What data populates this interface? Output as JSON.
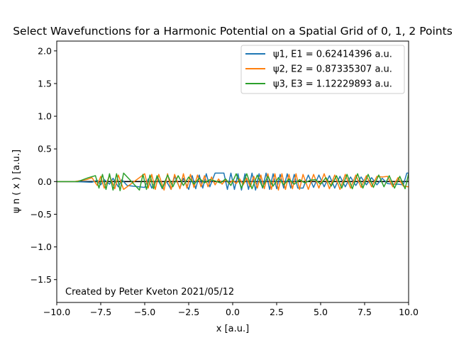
{
  "chart_data": {
    "type": "line",
    "title": "Select Wavefunctions for a Harmonic Potential on a Spatial Grid of 0, 1, 2 Points",
    "xlabel": "x [a.u.]",
    "ylabel": "ψ n ( x ) [a.u.]",
    "xlim": [
      -10,
      10
    ],
    "ylim": [
      -1.85,
      2.15
    ],
    "x_ticks": [
      -10.0,
      -7.5,
      -5.0,
      -2.5,
      0.0,
      2.5,
      5.0,
      7.5,
      10.0
    ],
    "x_tick_labels": [
      "−10.0",
      "−7.5",
      "−5.0",
      "−2.5",
      "0.0",
      "2.5",
      "5.0",
      "7.5",
      "10.0"
    ],
    "y_ticks": [
      -1.5,
      -1.0,
      -0.5,
      0.0,
      0.5,
      1.0,
      1.5,
      2.0
    ],
    "y_tick_labels": [
      "−1.5",
      "−1.0",
      "−0.5",
      "0.0",
      "0.5",
      "1.0",
      "1.5",
      "2.0"
    ],
    "grid": false,
    "legend_position": "top-right",
    "annotation": "Created by Peter Kveton 2021/05/12",
    "zero_line": {
      "y": 0,
      "color": "#000000"
    },
    "series": [
      {
        "name": "ψ1, E1 = 0.62414396 a.u.",
        "color": "#1f77b4",
        "x": [
          -10,
          -9,
          -8,
          -7.7,
          -7.5,
          -7.3,
          -7.0,
          -6.8,
          -6.5,
          -6.3,
          -6.0,
          -5.0,
          -4.8,
          -4.6,
          -4.3,
          -4.0,
          -3.8,
          -3.5,
          -3.3,
          -3.0,
          -2.8,
          -2.5,
          -2.3,
          -2.1,
          -1.9,
          -1.7,
          -1.5,
          -1.3,
          -1.0,
          -0.5,
          -0.3,
          -0.1,
          0.1,
          0.3,
          0.5,
          0.7,
          0.9,
          1.1,
          1.3,
          1.5,
          1.7,
          1.9,
          2.1,
          2.3,
          2.5,
          2.7,
          2.9,
          3.1,
          3.3,
          3.5,
          3.7,
          4.0,
          4.3,
          4.6,
          4.9,
          5.2,
          5.5,
          5.8,
          6.1,
          6.4,
          6.7,
          7.0,
          7.3,
          7.6,
          7.9,
          8.2,
          8.5,
          8.8,
          9.1,
          9.4,
          9.7,
          9.9,
          10
        ],
        "values": [
          0,
          0,
          -0.01,
          0.02,
          -0.05,
          0.03,
          -0.04,
          0.05,
          -0.08,
          0.03,
          -0.06,
          -0.09,
          0.04,
          -0.1,
          0.06,
          -0.11,
          0.02,
          -0.12,
          0.08,
          -0.1,
          0.05,
          -0.12,
          0.09,
          -0.11,
          0.1,
          -0.1,
          0.12,
          -0.08,
          0.13,
          0.13,
          -0.12,
          0.13,
          -0.12,
          0.12,
          -0.13,
          0.12,
          -0.12,
          0.13,
          -0.13,
          0.12,
          -0.1,
          0.13,
          -0.12,
          0.12,
          -0.11,
          0.11,
          -0.1,
          0.12,
          -0.1,
          0.11,
          -0.1,
          -0.1,
          0.1,
          -0.09,
          0.1,
          -0.08,
          0.09,
          -0.1,
          0.08,
          -0.08,
          0.07,
          -0.06,
          0.07,
          -0.05,
          0.06,
          -0.05,
          0.05,
          -0.03,
          -0.04,
          -0.04,
          -0.05,
          0.13,
          0.13
        ]
      },
      {
        "name": "ψ2, E2 = 0.87335307 a.u.",
        "color": "#ff7f0e",
        "x": [
          -10,
          -9,
          -8.3,
          -8.0,
          -7.7,
          -7.5,
          -7.3,
          -7.0,
          -6.7,
          -6.5,
          -6.2,
          -5.0,
          -4.8,
          -4.6,
          -4.4,
          -4.2,
          -3.9,
          -3.7,
          -3.5,
          -3.3,
          -3.0,
          -2.8,
          -2.6,
          -2.4,
          -2.2,
          -2.0,
          -1.8,
          -1.6,
          -1.4,
          -1.2,
          -1.0,
          -0.8,
          -0.6,
          -0.4,
          -0.2,
          0.0,
          0.2,
          0.4,
          0.6,
          0.8,
          1.0,
          1.2,
          1.4,
          1.6,
          1.8,
          2.0,
          2.2,
          2.4,
          2.6,
          2.8,
          3.0,
          3.2,
          3.4,
          3.6,
          3.8,
          4.0,
          4.3,
          4.6,
          4.9,
          5.2,
          5.5,
          5.8,
          6.1,
          6.4,
          6.7,
          7.0,
          7.3,
          7.6,
          7.9,
          8.2,
          8.5,
          8.8,
          9.1,
          9.4,
          9.7,
          10
        ],
        "values": [
          0,
          0,
          0.03,
          0.06,
          -0.06,
          0.08,
          -0.1,
          0.09,
          -0.11,
          0.1,
          -0.12,
          0.12,
          -0.1,
          0.11,
          -0.12,
          0.11,
          -0.13,
          0.12,
          -0.12,
          0.11,
          -0.11,
          0.12,
          -0.1,
          0.11,
          -0.09,
          0.1,
          -0.08,
          0.09,
          -0.08,
          0.07,
          -0.05,
          0.04,
          -0.04,
          0.03,
          -0.03,
          0.02,
          -0.03,
          0.04,
          -0.05,
          0.05,
          -0.08,
          0.08,
          -0.1,
          0.1,
          -0.11,
          0.12,
          -0.12,
          0.12,
          -0.13,
          0.12,
          -0.12,
          0.11,
          -0.11,
          0.12,
          -0.12,
          0.11,
          -0.12,
          0.11,
          -0.1,
          0.12,
          -0.11,
          0.1,
          -0.12,
          0.11,
          -0.1,
          0.1,
          -0.09,
          0.09,
          -0.08,
          0.08,
          0.07,
          0.08,
          -0.08,
          0.06,
          -0.07,
          -0.08
        ]
      },
      {
        "name": "ψ3, E3 = 1.12229893 a.u.",
        "color": "#2ca02c",
        "x": [
          -10,
          -8.8,
          -8.2,
          -7.8,
          -7.6,
          -7.4,
          -7.2,
          -7.0,
          -6.8,
          -6.6,
          -6.4,
          -6.2,
          -5.3,
          -5.1,
          -4.9,
          -4.7,
          -4.5,
          -4.3,
          -4.0,
          -3.7,
          -3.4,
          -3.1,
          -2.8,
          -2.5,
          -2.2,
          -1.9,
          -1.6,
          -1.3,
          -1.0,
          -0.7,
          -0.4,
          -0.1,
          0.2,
          0.5,
          0.8,
          1.1,
          1.4,
          1.7,
          2.0,
          2.3,
          2.6,
          2.9,
          3.2,
          3.5,
          3.8,
          4.1,
          4.4,
          4.7,
          5.0,
          5.3,
          5.6,
          5.9,
          6.2,
          6.5,
          6.8,
          7.1,
          7.4,
          7.7,
          8.0,
          8.3,
          8.6,
          8.9,
          9.2,
          9.5,
          9.8,
          10
        ],
        "values": [
          0,
          0,
          0.06,
          0.09,
          -0.1,
          0.11,
          -0.12,
          0.12,
          -0.13,
          0.12,
          -0.14,
          0.13,
          -0.13,
          0.11,
          -0.12,
          0.1,
          -0.11,
          0.09,
          -0.1,
          0.1,
          -0.08,
          0.09,
          -0.06,
          0.07,
          -0.04,
          0.05,
          -0.02,
          0.03,
          0.01,
          -0.02,
          0.04,
          -0.06,
          0.12,
          -0.1,
          0.12,
          -0.11,
          0.1,
          -0.09,
          0.08,
          -0.07,
          0.06,
          -0.05,
          0.04,
          -0.04,
          0.03,
          -0.02,
          0.02,
          0.03,
          -0.04,
          0.06,
          -0.07,
          0.09,
          -0.1,
          0.11,
          -0.11,
          0.12,
          -0.1,
          0.11,
          -0.09,
          0.1,
          -0.08,
          0.09,
          -0.1,
          0.08,
          -0.11,
          0.12
        ]
      }
    ]
  }
}
